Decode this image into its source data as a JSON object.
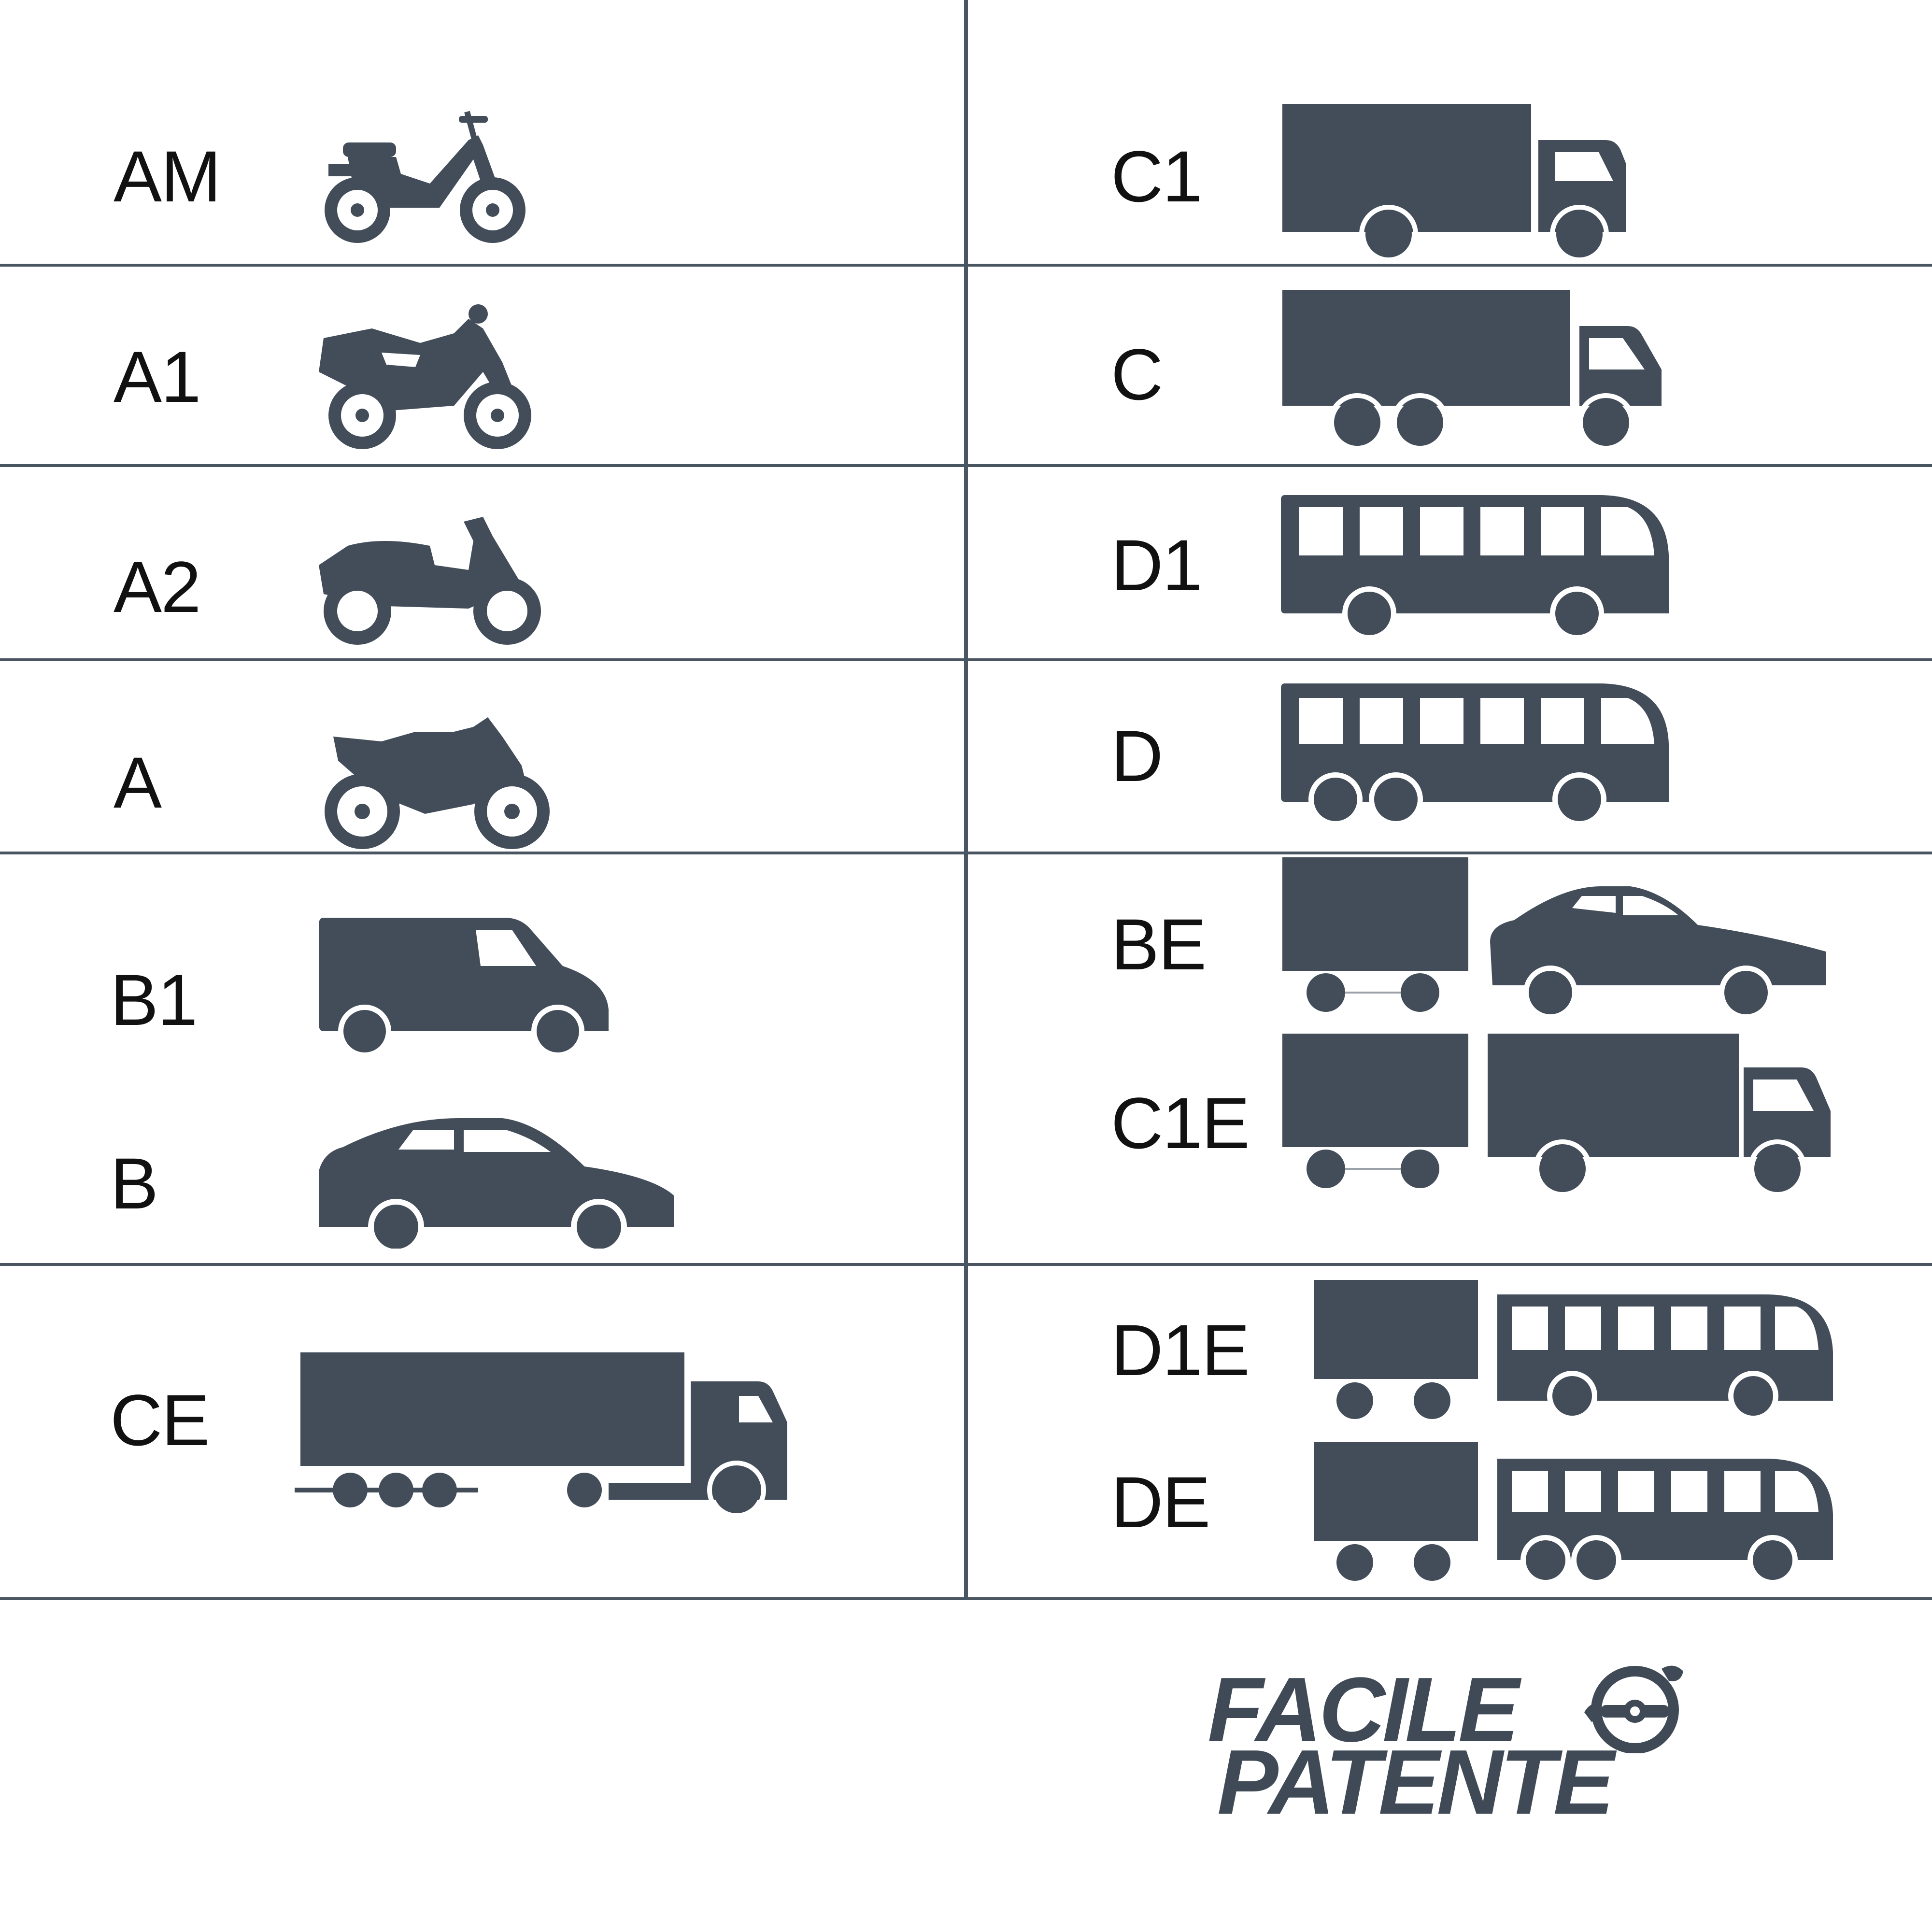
{
  "left": [
    {
      "label": "AM",
      "icon": "moped-icon"
    },
    {
      "label": "A1",
      "icon": "scooter-icon"
    },
    {
      "label": "A2",
      "icon": "maxi-scooter-icon"
    },
    {
      "label": "A",
      "icon": "sport-motorcycle-icon"
    },
    {
      "label": "B1",
      "icon": "van-icon"
    },
    {
      "label": "B",
      "icon": "car-icon"
    },
    {
      "label": "CE",
      "icon": "semi-truck-icon"
    }
  ],
  "right": [
    {
      "label": "C1",
      "icon": "light-truck-icon"
    },
    {
      "label": "C",
      "icon": "truck-icon"
    },
    {
      "label": "D1",
      "icon": "minibus-icon"
    },
    {
      "label": "D",
      "icon": "bus-icon"
    },
    {
      "label": "BE",
      "icon": "car-with-trailer-icon"
    },
    {
      "label": "C1E",
      "icon": "light-truck-with-trailer-icon"
    },
    {
      "label": "D1E",
      "icon": "minibus-with-trailer-icon"
    },
    {
      "label": "DE",
      "icon": "bus-with-trailer-icon"
    }
  ],
  "logo": {
    "line1": "FACILE",
    "line2": "PATENTE"
  },
  "colors": {
    "icon": "#424d59",
    "lines": "#4a5562",
    "text": "#111111",
    "logo": "#3f4a56"
  }
}
